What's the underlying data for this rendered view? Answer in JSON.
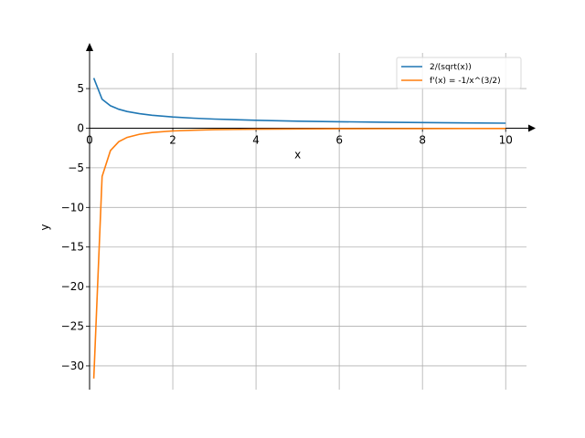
{
  "chart_data": {
    "type": "line",
    "xlabel": "x",
    "ylabel": "y",
    "xlim": [
      0,
      10.5
    ],
    "ylim": [
      -33,
      9.5
    ],
    "grid": true,
    "legend": "top-right",
    "xticks": [
      0,
      2,
      4,
      6,
      8,
      10
    ],
    "xtick_labels": [
      "0",
      "2",
      "4",
      "6",
      "8",
      "10"
    ],
    "yticks": [
      5,
      0,
      -5,
      -10,
      -15,
      -20,
      -25,
      -30
    ],
    "ytick_labels": [
      "5",
      "0",
      "−5",
      "−10",
      "−15",
      "−20",
      "−25",
      "−30"
    ],
    "series": [
      {
        "name": "2/(sqrt(x))",
        "color": "#1f77b4",
        "x": [
          0.1,
          0.3,
          0.5,
          0.7,
          0.9,
          1.2,
          1.5,
          2,
          2.5,
          3,
          4,
          5,
          6,
          7,
          8,
          9,
          10
        ],
        "y": [
          6.32,
          3.65,
          2.83,
          2.39,
          2.11,
          1.83,
          1.63,
          1.41,
          1.26,
          1.15,
          1.0,
          0.89,
          0.82,
          0.76,
          0.71,
          0.67,
          0.63
        ]
      },
      {
        "name": "f'(x) = -1/x^(3/2)",
        "color": "#ff7f0e",
        "x": [
          0.1,
          0.3,
          0.5,
          0.7,
          0.9,
          1.2,
          1.5,
          2,
          2.5,
          3,
          4,
          5,
          6,
          7,
          8,
          9,
          10
        ],
        "y": [
          -31.6,
          -6.09,
          -2.83,
          -1.71,
          -1.17,
          -0.76,
          -0.54,
          -0.35,
          -0.25,
          -0.19,
          -0.125,
          -0.089,
          -0.068,
          -0.054,
          -0.044,
          -0.037,
          -0.032
        ]
      }
    ]
  }
}
